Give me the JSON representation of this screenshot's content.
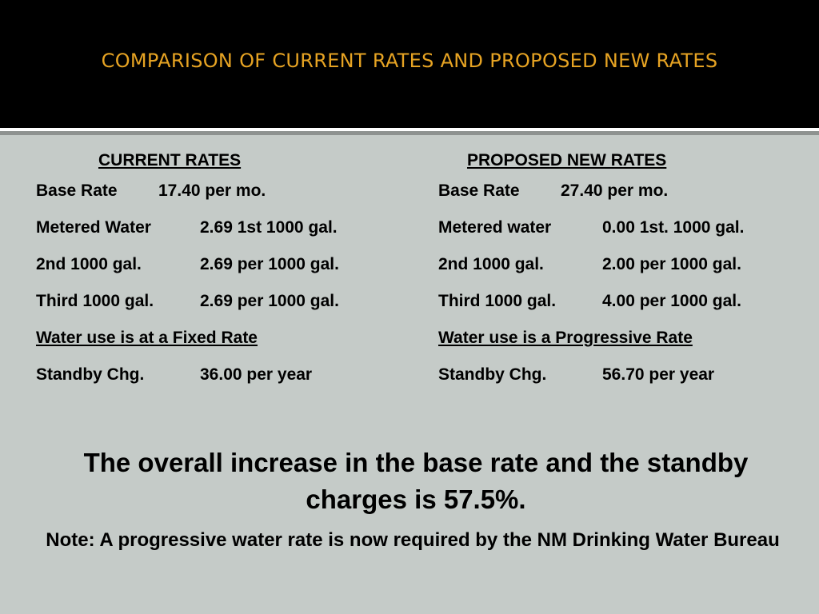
{
  "slide": {
    "title": "COMPARISON OF CURRENT RATES AND PROPOSED NEW RATES"
  },
  "current": {
    "heading": "CURRENT RATES",
    "rows": [
      {
        "label": "Base Rate",
        "value": "17.40 per mo."
      },
      {
        "label": "Metered Water",
        "value": "2.69 1st 1000 gal."
      },
      {
        "label": "2nd 1000 gal.",
        "value": "2.69 per 1000 gal."
      },
      {
        "label": "Third 1000 gal.",
        "value": "2.69 per 1000 gal."
      }
    ],
    "note": "Water use is at a Fixed Rate",
    "standby": {
      "label": "Standby Chg.",
      "value": "36.00 per year"
    }
  },
  "proposed": {
    "heading": "PROPOSED NEW RATES",
    "rows": [
      {
        "label": "Base Rate",
        "value": "27.40 per mo."
      },
      {
        "label": "Metered water",
        "value": "0.00 1st. 1000 gal."
      },
      {
        "label": "2nd 1000 gal.",
        "value": "2.00 per 1000 gal."
      },
      {
        "label": "Third 1000 gal.",
        "value": "4.00 per 1000 gal."
      }
    ],
    "note": "Water use is a Progressive Rate",
    "standby": {
      "label": "Standby Chg.",
      "value": "56.70 per year"
    }
  },
  "summary": "The overall increase in the base rate and the standby charges is 57.5%.",
  "footnote": "Note:  A progressive water rate is now required by the NM Drinking Water Bureau",
  "colors": {
    "title": "#e6a323",
    "header_bg": "#000000",
    "body_bg": "#c5cbc8"
  }
}
